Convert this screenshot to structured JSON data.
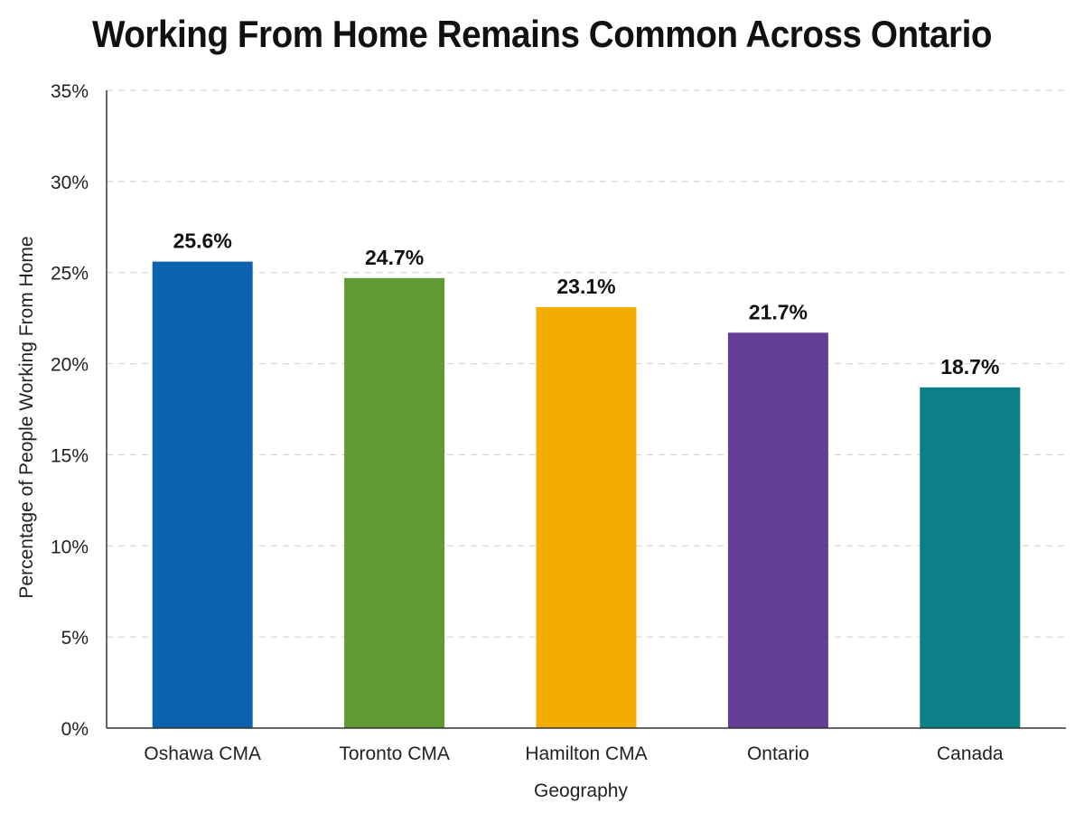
{
  "chart_data": {
    "type": "bar",
    "title": "Working From Home Remains Common Across Ontario",
    "xlabel": "Geography",
    "ylabel": "Percentage of People Working From Home",
    "categories": [
      "Oshawa CMA",
      "Toronto CMA",
      "Hamilton CMA",
      "Ontario",
      "Canada"
    ],
    "values": [
      25.6,
      24.7,
      23.1,
      21.7,
      18.7
    ],
    "data_labels": [
      "25.6%",
      "24.7%",
      "23.1%",
      "21.7%",
      "18.7%"
    ],
    "colors": [
      "#0d62b0",
      "#5f9a35",
      "#f4ac00",
      "#643f96",
      "#0b8088"
    ],
    "ylim": [
      0,
      35
    ],
    "yticks": [
      0,
      5,
      10,
      15,
      20,
      25,
      30,
      35
    ],
    "ytick_labels": [
      "0%",
      "5%",
      "10%",
      "15%",
      "20%",
      "25%",
      "30%",
      "35%"
    ],
    "grid": true,
    "legend": "none"
  }
}
